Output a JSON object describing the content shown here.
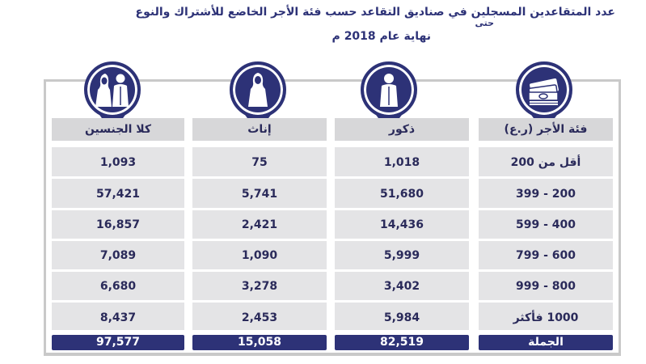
{
  "title": {
    "line1": "عدد المتقاعدين المسجلين في صناديق التقاعد حسب فئة الأجر الخاضع للأشتراك والنوع",
    "line2": "حتى",
    "line3": "نهاية عام 2018 م"
  },
  "colors": {
    "navy": "#2d3277",
    "header_gray": "#d7d7d9",
    "cell_gray": "#e4e4e6",
    "frame_gray": "#c9c9c9"
  },
  "columns": [
    {
      "key": "wage",
      "header": "فئة الأجر (ر.ع)",
      "icon": "money-stack-icon",
      "rows": [
        "أقل من 200",
        "200 - 399",
        "400 - 599",
        "600 - 799",
        "800 - 999",
        "1000 فأكثر"
      ],
      "total": "الجملة"
    },
    {
      "key": "males",
      "header": "ذكور",
      "icon": "man-icon",
      "rows": [
        "1,018",
        "51,680",
        "14,436",
        "5,999",
        "3,402",
        "5,984"
      ],
      "total": "82,519"
    },
    {
      "key": "females",
      "header": "إناث",
      "icon": "woman-icon",
      "rows": [
        "75",
        "5,741",
        "2,421",
        "1,090",
        "3,278",
        "2,453"
      ],
      "total": "15,058"
    },
    {
      "key": "both",
      "header": "كلا الجنسين",
      "icon": "couple-icon",
      "rows": [
        "1,093",
        "57,421",
        "16,857",
        "7,089",
        "6,680",
        "8,437"
      ],
      "total": "97,577"
    }
  ]
}
